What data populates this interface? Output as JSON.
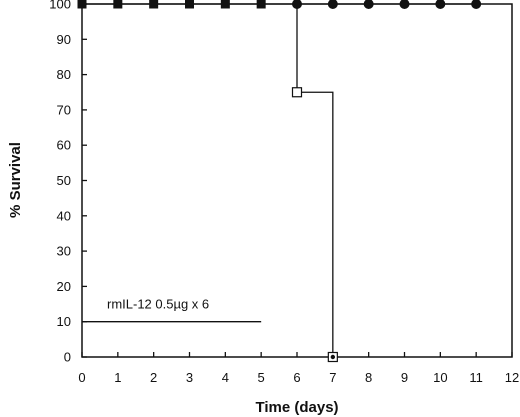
{
  "chart_data": {
    "type": "line",
    "title": "",
    "xlabel": "Time (days)",
    "ylabel": "% Survival",
    "xlim": [
      0,
      12
    ],
    "ylim": [
      0,
      100
    ],
    "xticks": [
      0,
      1,
      2,
      3,
      4,
      5,
      6,
      7,
      8,
      9,
      10,
      11,
      12
    ],
    "yticks": [
      0,
      10,
      20,
      30,
      40,
      50,
      60,
      70,
      80,
      90,
      100
    ],
    "grid": false,
    "series": [
      {
        "marker": "filled-square",
        "step": true,
        "x": [
          0,
          1,
          2,
          3,
          4,
          5
        ],
        "y": [
          100,
          100,
          100,
          100,
          100,
          100
        ]
      },
      {
        "marker": "open-square",
        "step": true,
        "x": [
          5,
          6,
          7
        ],
        "y": [
          100,
          75,
          0
        ]
      },
      {
        "marker": "filled-circle",
        "step": true,
        "x": [
          6,
          7,
          8,
          9,
          10,
          11
        ],
        "y": [
          100,
          100,
          100,
          100,
          100,
          100
        ]
      },
      {
        "marker": "dotted-square",
        "step": false,
        "x": [
          7
        ],
        "y": [
          0
        ]
      }
    ],
    "annotations": [
      {
        "text": "rmIL-12 0.5µg x 6",
        "line_x": [
          0,
          5
        ],
        "line_y": 10
      }
    ]
  }
}
